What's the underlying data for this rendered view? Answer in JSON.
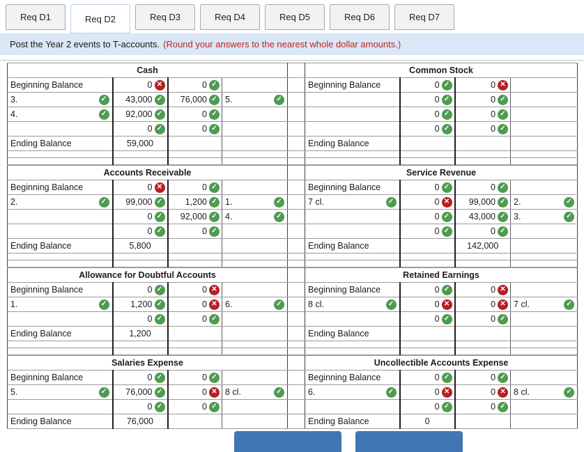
{
  "tab_bar": {
    "tabs": [
      {
        "label": "Req D1",
        "selected": false
      },
      {
        "label": "Req D2",
        "selected": true
      },
      {
        "label": "Req D3",
        "selected": false
      },
      {
        "label": "Req D4",
        "selected": false
      },
      {
        "label": "Req D5",
        "selected": false
      },
      {
        "label": "Req D6",
        "selected": false
      },
      {
        "label": "Req D7",
        "selected": false
      }
    ]
  },
  "instruction": {
    "main": "Post the Year 2 events to T-accounts.",
    "note": "(Round your answers to the nearest whole dollar amounts.)"
  },
  "icons": {
    "ok": "✓",
    "error": "✕",
    "ok_meaning": "correct-check",
    "error_meaning": "incorrect-x"
  },
  "colors": {
    "account_header_blue": "#73a9dc",
    "info_bar_blue": "#d9e7f6",
    "correct_green": "#4e9b51",
    "incorrect_red": "#b42025",
    "correct_cell_bg": "#f3f7f2",
    "incorrect_cell_bg": "#fdf0f0",
    "note_text_red": "#c0241c",
    "footer_button_blue": "#4076b4"
  },
  "bands": [
    {
      "left": {
        "title": "Cash",
        "rows": [
          {
            "left_label": "Beginning Balance",
            "left_ok": false,
            "debit": "0",
            "debit_status": "error",
            "credit": "0",
            "credit_status": "ok",
            "right_label": "",
            "right_ok": false
          },
          {
            "left_label": "3.",
            "left_ok": true,
            "debit": "43,000",
            "debit_status": "ok",
            "credit": "76,000",
            "credit_status": "ok",
            "right_label": "5.",
            "right_ok": true
          },
          {
            "left_label": "4.",
            "left_ok": true,
            "debit": "92,000",
            "debit_status": "ok",
            "credit": "0",
            "credit_status": "ok",
            "right_label": "",
            "right_ok": false
          },
          {
            "left_label": "",
            "left_ok": false,
            "debit": "0",
            "debit_status": "ok",
            "credit": "0",
            "credit_status": "ok",
            "right_label": "",
            "right_ok": false
          }
        ],
        "ending": {
          "label": "Ending Balance",
          "debit": "59,000",
          "credit": ""
        }
      },
      "right": {
        "title": "Common Stock",
        "rows": [
          {
            "left_label": "Beginning Balance",
            "left_ok": false,
            "debit": "0",
            "debit_status": "ok",
            "credit": "0",
            "credit_status": "error",
            "right_label": "",
            "right_ok": false
          },
          {
            "left_label": "",
            "left_ok": false,
            "debit": "0",
            "debit_status": "ok",
            "credit": "0",
            "credit_status": "ok",
            "right_label": "",
            "right_ok": false
          },
          {
            "left_label": "",
            "left_ok": false,
            "debit": "0",
            "debit_status": "ok",
            "credit": "0",
            "credit_status": "ok",
            "right_label": "",
            "right_ok": false
          },
          {
            "left_label": "",
            "left_ok": false,
            "debit": "0",
            "debit_status": "ok",
            "credit": "0",
            "credit_status": "ok",
            "right_label": "",
            "right_ok": false
          }
        ],
        "ending": {
          "label": "Ending Balance",
          "debit": "",
          "credit": ""
        }
      }
    },
    {
      "left": {
        "title": "Accounts Receivable",
        "rows": [
          {
            "left_label": "Beginning Balance",
            "left_ok": false,
            "debit": "0",
            "debit_status": "error",
            "credit": "0",
            "credit_status": "ok",
            "right_label": "",
            "right_ok": false
          },
          {
            "left_label": "2.",
            "left_ok": true,
            "debit": "99,000",
            "debit_status": "ok",
            "credit": "1,200",
            "credit_status": "ok",
            "right_label": "1.",
            "right_ok": true
          },
          {
            "left_label": "",
            "left_ok": false,
            "debit": "0",
            "debit_status": "ok",
            "credit": "92,000",
            "credit_status": "ok",
            "right_label": "4.",
            "right_ok": true
          },
          {
            "left_label": "",
            "left_ok": false,
            "debit": "0",
            "debit_status": "ok",
            "credit": "0",
            "credit_status": "ok",
            "right_label": "",
            "right_ok": false
          }
        ],
        "ending": {
          "label": "Ending Balance",
          "debit": "5,800",
          "credit": ""
        }
      },
      "right": {
        "title": "Service Revenue",
        "rows": [
          {
            "left_label": "Beginning Balance",
            "left_ok": false,
            "debit": "0",
            "debit_status": "ok",
            "credit": "0",
            "credit_status": "ok",
            "right_label": "",
            "right_ok": false
          },
          {
            "left_label": "7 cl.",
            "left_ok": true,
            "debit": "0",
            "debit_status": "error",
            "credit": "99,000",
            "credit_status": "ok",
            "right_label": "2.",
            "right_ok": true
          },
          {
            "left_label": "",
            "left_ok": false,
            "debit": "0",
            "debit_status": "ok",
            "credit": "43,000",
            "credit_status": "ok",
            "right_label": "3.",
            "right_ok": true
          },
          {
            "left_label": "",
            "left_ok": false,
            "debit": "0",
            "debit_status": "ok",
            "credit": "0",
            "credit_status": "ok",
            "right_label": "",
            "right_ok": false
          }
        ],
        "ending": {
          "label": "Ending Balance",
          "debit": "",
          "credit": "142,000"
        }
      }
    },
    {
      "left": {
        "title": "Allowance for Doubtful Accounts",
        "rows": [
          {
            "left_label": "Beginning Balance",
            "left_ok": false,
            "debit": "0",
            "debit_status": "ok",
            "credit": "0",
            "credit_status": "error",
            "right_label": "",
            "right_ok": false
          },
          {
            "left_label": "1.",
            "left_ok": true,
            "debit": "1,200",
            "debit_status": "ok",
            "credit": "0",
            "credit_status": "error",
            "right_label": "6.",
            "right_ok": true
          },
          {
            "left_label": "",
            "left_ok": false,
            "debit": "0",
            "debit_status": "ok",
            "credit": "0",
            "credit_status": "ok",
            "right_label": "",
            "right_ok": false
          }
        ],
        "ending": {
          "label": "Ending Balance",
          "debit": "1,200",
          "credit": ""
        }
      },
      "right": {
        "title": "Retained Earnings",
        "rows": [
          {
            "left_label": "Beginning Balance",
            "left_ok": false,
            "debit": "0",
            "debit_status": "ok",
            "credit": "0",
            "credit_status": "error",
            "right_label": "",
            "right_ok": false
          },
          {
            "left_label": "8 cl.",
            "left_ok": true,
            "debit": "0",
            "debit_status": "error",
            "credit": "0",
            "credit_status": "error",
            "right_label": "7 cl.",
            "right_ok": true
          },
          {
            "left_label": "",
            "left_ok": false,
            "debit": "0",
            "debit_status": "ok",
            "credit": "0",
            "credit_status": "ok",
            "right_label": "",
            "right_ok": false
          }
        ],
        "ending": {
          "label": "Ending Balance",
          "debit": "",
          "credit": ""
        }
      }
    },
    {
      "left": {
        "title": "Salaries Expense",
        "rows": [
          {
            "left_label": "Beginning Balance",
            "left_ok": false,
            "debit": "0",
            "debit_status": "ok",
            "credit": "0",
            "credit_status": "ok",
            "right_label": "",
            "right_ok": false
          },
          {
            "left_label": "5.",
            "left_ok": true,
            "debit": "76,000",
            "debit_status": "ok",
            "credit": "0",
            "credit_status": "error",
            "right_label": "8 cl.",
            "right_ok": true
          },
          {
            "left_label": "",
            "left_ok": false,
            "debit": "0",
            "debit_status": "ok",
            "credit": "0",
            "credit_status": "ok",
            "right_label": "",
            "right_ok": false
          }
        ],
        "ending": {
          "label": "Ending Balance",
          "debit": "76,000",
          "credit": ""
        }
      },
      "right": {
        "title": "Uncollectible Accounts Expense",
        "rows": [
          {
            "left_label": "Beginning Balance",
            "left_ok": false,
            "debit": "0",
            "debit_status": "ok",
            "credit": "0",
            "credit_status": "ok",
            "right_label": "",
            "right_ok": false
          },
          {
            "left_label": "6.",
            "left_ok": true,
            "debit": "0",
            "debit_status": "error",
            "credit": "0",
            "credit_status": "error",
            "right_label": "8 cl.",
            "right_ok": true
          },
          {
            "left_label": "",
            "left_ok": false,
            "debit": "0",
            "debit_status": "ok",
            "credit": "0",
            "credit_status": "ok",
            "right_label": "",
            "right_ok": false
          }
        ],
        "ending": {
          "label": "Ending Balance",
          "debit": "0",
          "credit": ""
        }
      }
    }
  ],
  "footer": {
    "buttons": [
      {
        "label": ""
      },
      {
        "label": ""
      }
    ]
  }
}
